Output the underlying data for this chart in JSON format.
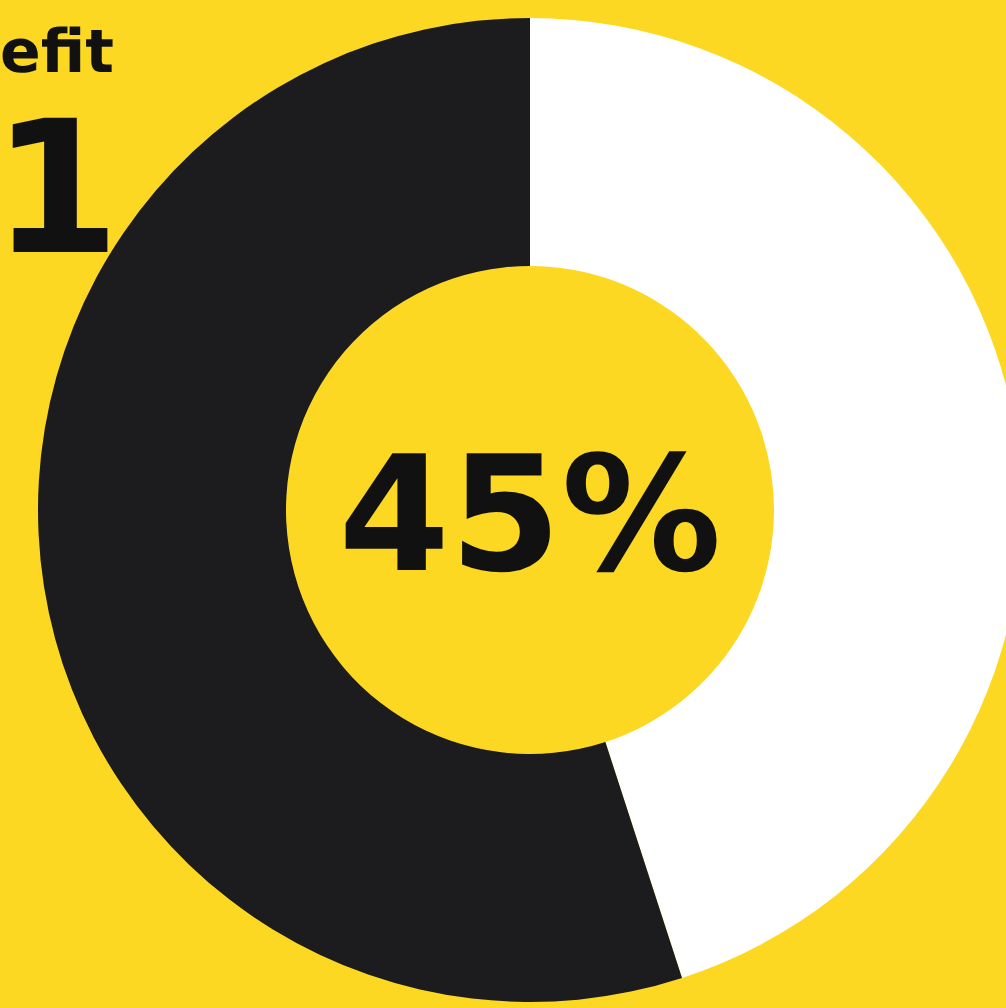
{
  "chart_data": {
    "type": "donut",
    "categories": [
      null,
      null
    ],
    "values": [
      45,
      55
    ],
    "colors": [
      "#ffffff",
      "#1c1c1e"
    ],
    "annotations": [
      "efit",
      "1",
      "45%"
    ],
    "legend": false
  }
}
